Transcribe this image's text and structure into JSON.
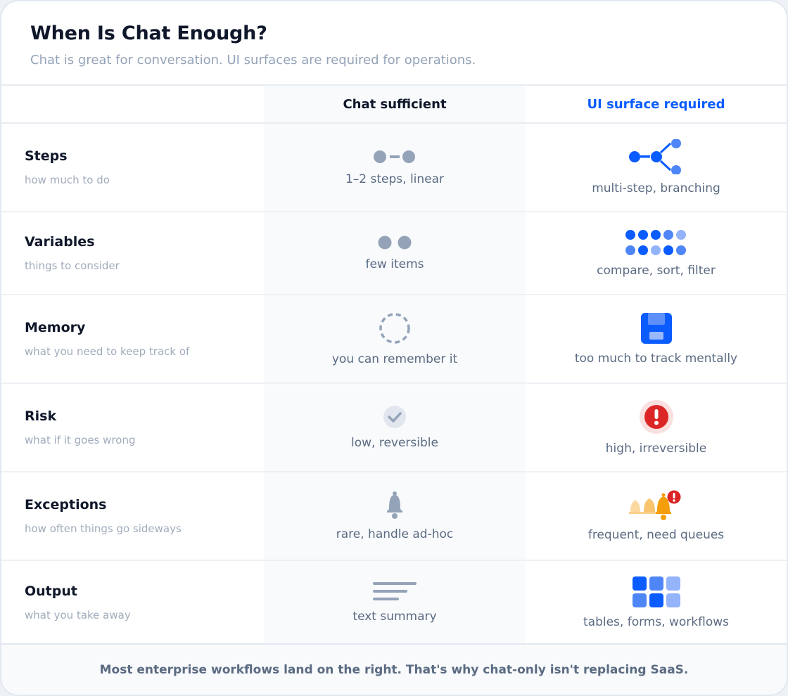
{
  "header": {
    "title": "When Is Chat Enough?",
    "subtitle": "Chat is great for conversation. UI surfaces are required for operations."
  },
  "columns": {
    "chat": "Chat sufficient",
    "ui": "UI surface required"
  },
  "colors": {
    "accent": "#0a5cff",
    "muted": "#94a3b8",
    "danger": "#dc2626",
    "warning": "#f59e0b"
  },
  "rows": [
    {
      "label": "Steps",
      "hint": "how much to do",
      "chat": "1–2 steps, linear",
      "ui": "multi-step, branching",
      "chat_icon": "two-step-linear-icon",
      "ui_icon": "branching-steps-icon"
    },
    {
      "label": "Variables",
      "hint": "things to consider",
      "chat": "few items",
      "ui": "compare, sort, filter",
      "chat_icon": "two-dots-icon",
      "ui_icon": "dot-grid-icon"
    },
    {
      "label": "Memory",
      "hint": "what you need to keep track of",
      "chat": "you can remember it",
      "ui": "too much to track mentally",
      "chat_icon": "dashed-circle-icon",
      "ui_icon": "floppy-disk-icon"
    },
    {
      "label": "Risk",
      "hint": "what if it goes wrong",
      "chat": "low, reversible",
      "ui": "high, irreversible",
      "chat_icon": "check-circle-icon",
      "ui_icon": "alert-circle-icon"
    },
    {
      "label": "Exceptions",
      "hint": "how often things go sideways",
      "chat": "rare, handle ad-hoc",
      "ui": "frequent, need queues",
      "chat_icon": "bell-icon",
      "ui_icon": "bell-queue-alert-icon"
    },
    {
      "label": "Output",
      "hint": "what you take away",
      "chat": "text summary",
      "ui": "tables, forms, workflows",
      "chat_icon": "text-lines-icon",
      "ui_icon": "tile-grid-icon"
    }
  ],
  "footer": "Most enterprise workflows land on the right. That's why chat-only isn't replacing SaaS."
}
